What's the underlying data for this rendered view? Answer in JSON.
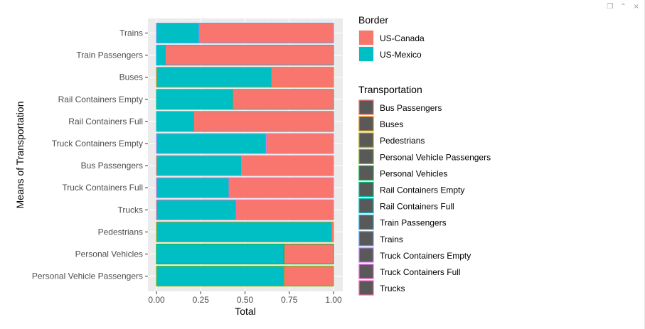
{
  "window": {
    "controls": [
      {
        "name": "popout-icon",
        "glyph": "❐"
      },
      {
        "name": "maximize-icon",
        "glyph": "⌃"
      },
      {
        "name": "close-icon",
        "glyph": "×"
      }
    ]
  },
  "chart_data": {
    "type": "bar",
    "orientation": "horizontal",
    "position": "fill",
    "xlabel": "Total",
    "ylabel": "Means of Transportation",
    "xlim": [
      0,
      1
    ],
    "x_ticks": [
      0,
      0.25,
      0.5,
      0.75,
      1
    ],
    "x_tick_labels": [
      "0.00",
      "0.25",
      "0.50",
      "0.75",
      "1.00"
    ],
    "grid": true,
    "legend_position": "right",
    "categories": [
      "Trains",
      "Train Passengers",
      "Buses",
      "Rail Containers Empty",
      "Rail Containers Full",
      "Truck Containers Empty",
      "Bus Passengers",
      "Truck Containers Full",
      "Trucks",
      "Pedestrians",
      "Personal Vehicles",
      "Personal Vehicle Passengers"
    ],
    "series": [
      {
        "name": "US-Mexico",
        "color": "#00BFC4",
        "values": [
          0.24,
          0.05,
          0.65,
          0.43,
          0.21,
          0.62,
          0.48,
          0.41,
          0.45,
          0.99,
          0.72,
          0.72
        ]
      },
      {
        "name": "US-Canada",
        "color": "#F8766D",
        "values": [
          0.76,
          0.95,
          0.35,
          0.57,
          0.79,
          0.38,
          0.52,
          0.59,
          0.55,
          0.01,
          0.28,
          0.28
        ]
      }
    ],
    "legends": [
      {
        "title": "Border",
        "items": [
          {
            "label": "US-Canada",
            "fill": "#F8766D"
          },
          {
            "label": "US-Mexico",
            "fill": "#00BFC4"
          }
        ]
      },
      {
        "title": "Transportation",
        "items": [
          {
            "label": "Bus Passengers",
            "outline": "#F8766D"
          },
          {
            "label": "Buses",
            "outline": "#DE8C00"
          },
          {
            "label": "Pedestrians",
            "outline": "#B79F00"
          },
          {
            "label": "Personal Vehicle Passengers",
            "outline": "#7CAE00"
          },
          {
            "label": "Personal Vehicles",
            "outline": "#00BA38"
          },
          {
            "label": "Rail Containers Empty",
            "outline": "#00C08B"
          },
          {
            "label": "Rail Containers Full",
            "outline": "#00BFC4"
          },
          {
            "label": "Train Passengers",
            "outline": "#00B4F0"
          },
          {
            "label": "Trains",
            "outline": "#619CFF"
          },
          {
            "label": "Truck Containers Empty",
            "outline": "#C77CFF"
          },
          {
            "label": "Truck Containers Full",
            "outline": "#F564E3"
          },
          {
            "label": "Trucks",
            "outline": "#FF64B0"
          }
        ]
      }
    ]
  }
}
